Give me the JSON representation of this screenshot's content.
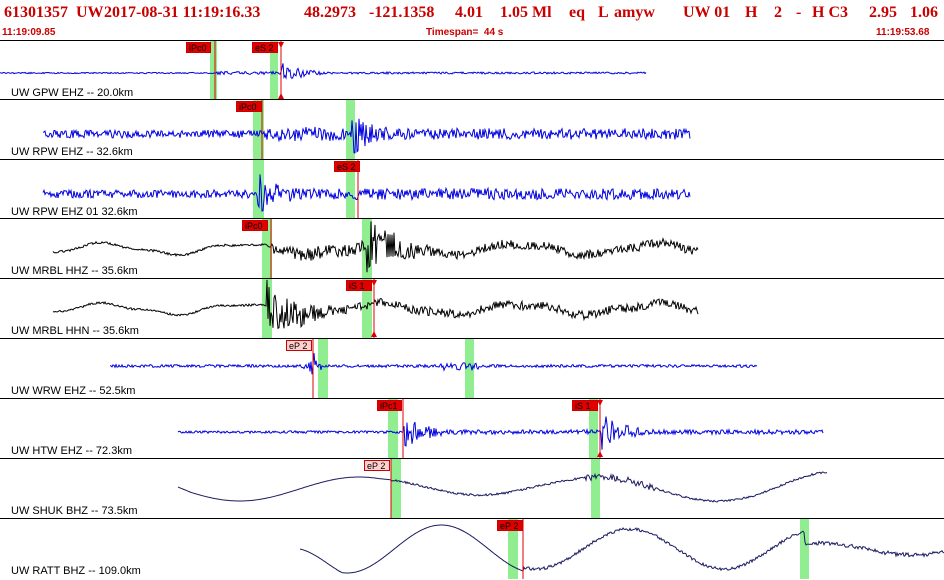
{
  "header": {
    "event_id": "61301357",
    "network": "UW",
    "datetime": "2017-08-31 11:19:16.33",
    "lat": "48.2973",
    "lon": "-121.1358",
    "depth": "4.01",
    "mag": "1.05 Ml",
    "etype": "eq",
    "gtype": "L",
    "author": "amyw",
    "src": "UW 01",
    "flag1": "H",
    "num": "2",
    "dash": "-",
    "flag2": "H C3",
    "rms": "2.95",
    "err": "1.06",
    "start_time": "11:19:09.85",
    "timespan": "Timespan=  44 s",
    "end_time": "11:19:53.68"
  },
  "colors": {
    "header_text": "#c80000",
    "trace_blue": "#0000e0",
    "trace_black": "#000000",
    "trace_navy": "#1a1a60",
    "pick_window": "#90ee90",
    "pick_line": "#e00000"
  },
  "channels": [
    {
      "label": "UW GPW EHZ -- 20.0km",
      "trace": "blue",
      "kind": "burst",
      "picks": [
        {
          "tag": "iPc0",
          "style": "solid"
        },
        {
          "tag": "eS 2",
          "style": "solid"
        }
      ]
    },
    {
      "label": "UW RPW EHZ -- 32.6km",
      "trace": "blue",
      "kind": "noisy",
      "picks": [
        {
          "tag": "iPc0",
          "style": "solid"
        }
      ]
    },
    {
      "label": "UW RPW EHZ 01 32.6km",
      "trace": "blue",
      "kind": "noisy",
      "picks": [
        {
          "tag": "eS 2",
          "style": "solid"
        }
      ]
    },
    {
      "label": "UW MRBL HHZ -- 35.6km",
      "trace": "black",
      "kind": "wave",
      "picks": [
        {
          "tag": "iPc0",
          "style": "solid"
        }
      ]
    },
    {
      "label": "UW MRBL HHN -- 35.6km",
      "trace": "black",
      "kind": "wave",
      "picks": [
        {
          "tag": "iS 1",
          "style": "solid"
        }
      ]
    },
    {
      "label": "UW WRW EHZ -- 52.5km",
      "trace": "blue",
      "kind": "spike",
      "picks": [
        {
          "tag": "eP 2",
          "style": "light"
        }
      ]
    },
    {
      "label": "UW HTW EHZ -- 72.3km",
      "trace": "blue",
      "kind": "burst2",
      "picks": [
        {
          "tag": "iPc1",
          "style": "solid"
        },
        {
          "tag": "iS 1",
          "style": "solid"
        }
      ]
    },
    {
      "label": "UW SHUK BHZ -- 73.5km",
      "trace": "navy",
      "kind": "slow",
      "picks": [
        {
          "tag": "eP 2",
          "style": "light"
        }
      ]
    },
    {
      "label": "UW RATT BHZ -- 109.0km",
      "trace": "navy",
      "kind": "slowbig",
      "picks": [
        {
          "tag": "eP 2",
          "style": "solid"
        }
      ]
    }
  ]
}
